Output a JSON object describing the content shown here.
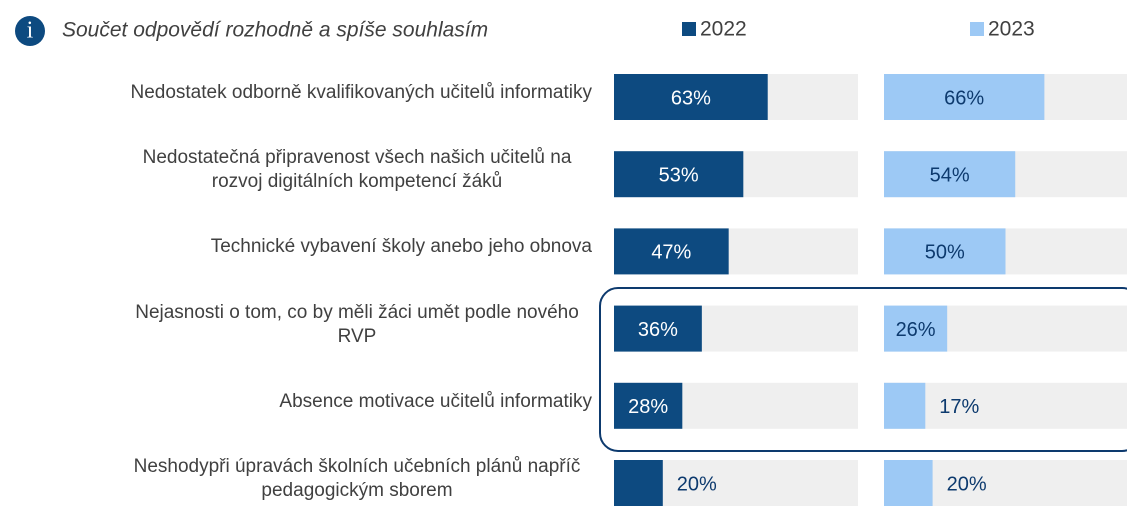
{
  "chart_data": {
    "type": "bar",
    "title": "Součet odpovědí rozhodně a spíše souhlasím",
    "categories": [
      "Nedostatek odborně kvalifikovaných učitelů informatiky",
      "Nedostatečná připravenost všech našich učitelů na rozvoj digitálních kompetencí žáků",
      "Technické vybavení školy anebo jeho obnova",
      "Nejasnosti o tom, co by měli žáci umět podle nového RVP",
      "Absence motivace učitelů informatiky",
      "Neshodypři úpravách školních učebních plánů napříč pedagogickým sborem"
    ],
    "series": [
      {
        "name": "2022",
        "color": "#0d4a80",
        "values": [
          63,
          53,
          47,
          36,
          28,
          20
        ],
        "value_labels": [
          "63%",
          "53%",
          "47%",
          "36%",
          "28%",
          "20%"
        ]
      },
      {
        "name": "2023",
        "color": "#9dc9f5",
        "values": [
          66,
          54,
          50,
          26,
          17,
          20
        ],
        "value_labels": [
          "66%",
          "54%",
          "50%",
          "26%",
          "17%",
          "20%"
        ]
      }
    ],
    "xlim": [
      0,
      100
    ]
  }
}
